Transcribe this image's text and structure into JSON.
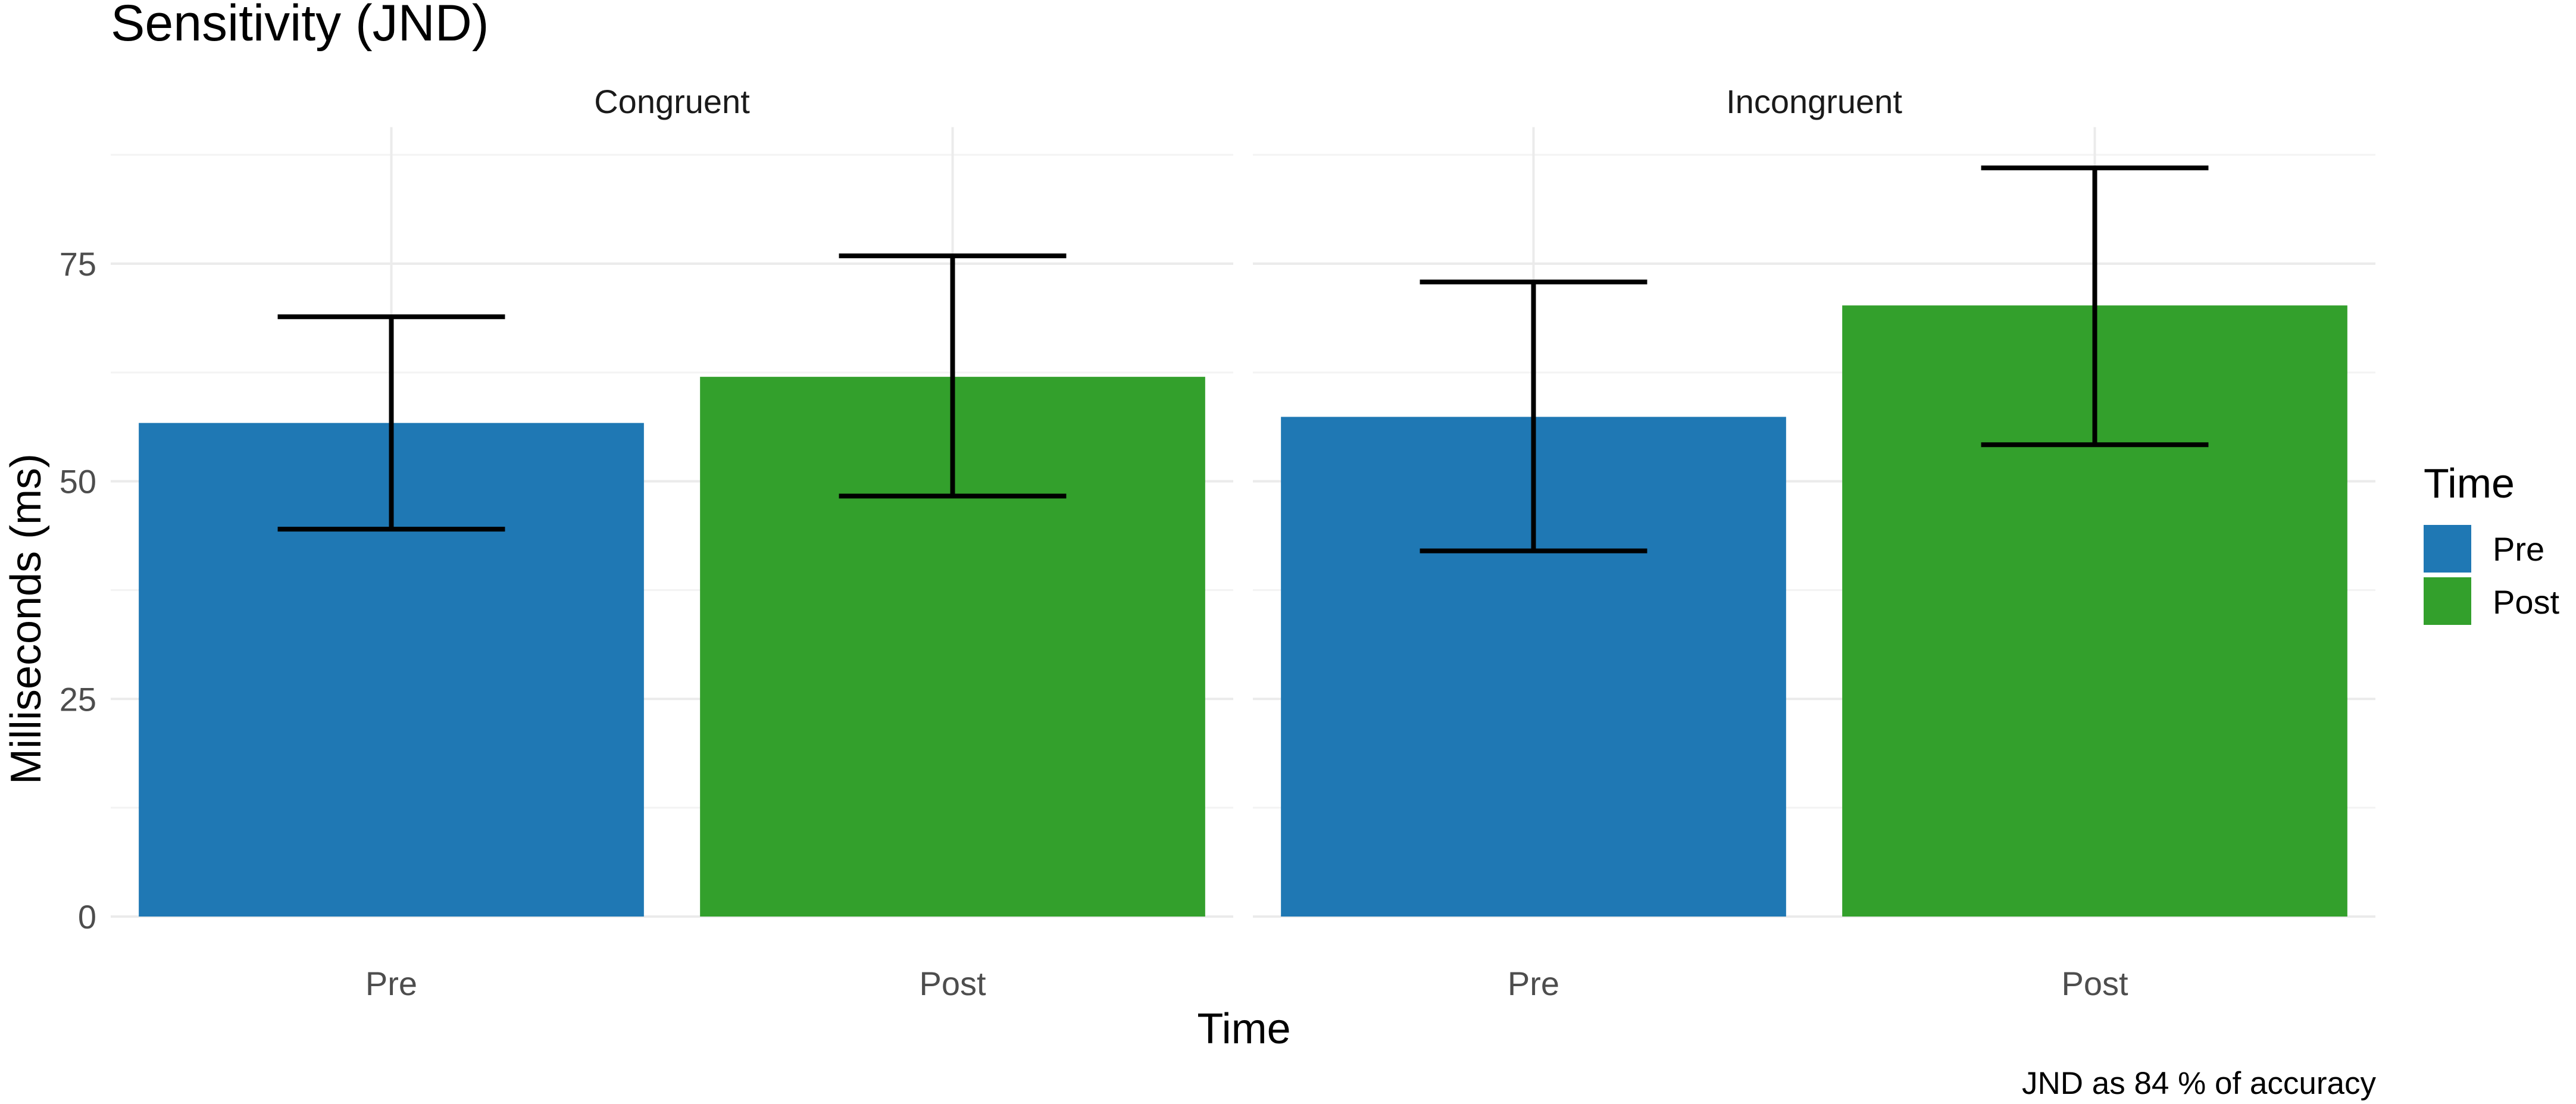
{
  "chart_data": {
    "type": "bar",
    "title": "Sensitivity (JND)",
    "xlabel": "Time",
    "ylabel": "Milliseconds (ms)",
    "caption": "JND as 84 % of accuracy",
    "ylim": [
      0,
      90
    ],
    "yticks": [
      0,
      25,
      50,
      75
    ],
    "grid": true,
    "legend": {
      "title": "Time",
      "position": "right",
      "items": [
        {
          "label": "Pre",
          "color": "#1f78b4"
        },
        {
          "label": "Post",
          "color": "#33a02c"
        }
      ]
    },
    "categories": [
      "Pre",
      "Post"
    ],
    "panels": [
      {
        "name": "Congruent",
        "bars": [
          {
            "x": "Pre",
            "value": 56.7,
            "lower": 44.5,
            "upper": 68.9
          },
          {
            "x": "Post",
            "value": 62.0,
            "lower": 48.3,
            "upper": 75.9
          }
        ]
      },
      {
        "name": "Incongruent",
        "bars": [
          {
            "x": "Pre",
            "value": 57.4,
            "lower": 42.0,
            "upper": 72.9
          },
          {
            "x": "Post",
            "value": 70.2,
            "lower": 54.2,
            "upper": 86.0
          }
        ]
      }
    ]
  }
}
